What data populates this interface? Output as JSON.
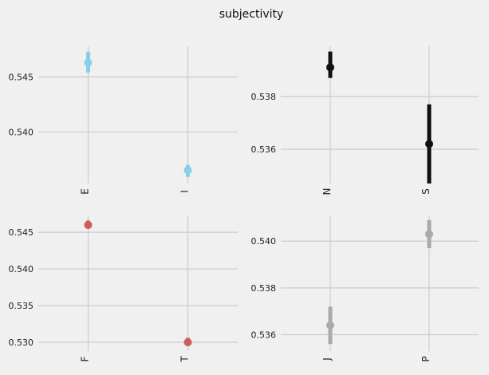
{
  "figure": {
    "title": "subjectivity"
  },
  "colors": {
    "background": "#f0f0f0",
    "grid": "#cbcbcb",
    "tick_text": "#222222"
  },
  "chart_data": [
    {
      "type": "scatter",
      "style": "point estimate with error bar",
      "categories": [
        "E",
        "I"
      ],
      "values": [
        0.5463,
        0.5365
      ],
      "error_low": [
        0.5454,
        0.5359
      ],
      "error_high": [
        0.5473,
        0.537
      ],
      "yticks": [
        "0.545",
        "0.540"
      ],
      "ytick_values": [
        0.545,
        0.54
      ],
      "ylim": [
        0.5353,
        0.5478
      ],
      "color": "#87ceeb",
      "grid": true
    },
    {
      "type": "scatter",
      "style": "point estimate with error bar",
      "categories": [
        "N",
        "S"
      ],
      "values": [
        0.5391,
        0.5362
      ],
      "error_low": [
        0.5387,
        0.5347
      ],
      "error_high": [
        0.5397,
        0.5377
      ],
      "yticks": [
        "0.538",
        "0.536"
      ],
      "ytick_values": [
        0.538,
        0.536
      ],
      "ylim": [
        0.5347,
        0.5399
      ],
      "color": "#111111",
      "grid": true
    },
    {
      "type": "scatter",
      "style": "point estimate with error bar",
      "categories": [
        "F",
        "T"
      ],
      "values": [
        0.546,
        0.53
      ],
      "error_low": [
        0.5455,
        0.5295
      ],
      "error_high": [
        0.5466,
        0.5306
      ],
      "yticks": [
        "0.545",
        "0.540",
        "0.535",
        "0.530"
      ],
      "ytick_values": [
        0.545,
        0.54,
        0.535,
        0.53
      ],
      "ylim": [
        0.5288,
        0.5473
      ],
      "color": "#cd5c5c",
      "grid": true
    },
    {
      "type": "scatter",
      "style": "point estimate with error bar",
      "categories": [
        "J",
        "P"
      ],
      "values": [
        0.5364,
        0.5403
      ],
      "error_low": [
        0.5356,
        0.5397
      ],
      "error_high": [
        0.5372,
        0.5409
      ],
      "yticks": [
        "0.540",
        "0.538",
        "0.536"
      ],
      "ytick_values": [
        0.54,
        0.538,
        0.536
      ],
      "ylim": [
        0.5353,
        0.5411
      ],
      "color": "#aaaaaa",
      "grid": true
    }
  ]
}
